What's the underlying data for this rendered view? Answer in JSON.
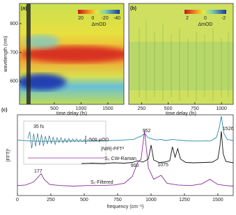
{
  "chart_data": [
    {
      "type": "heatmap",
      "title": "(a)",
      "xlabel": "time delay (fs)",
      "ylabel": "wavelength (nm)",
      "xlim": [
        -150,
        1800
      ],
      "xticks": [
        500,
        1000,
        1500
      ],
      "ylim": [
        520,
        870
      ],
      "yticks": [
        600,
        700,
        800
      ],
      "colorbar_ticks": [
        20,
        0,
        -20,
        -40
      ],
      "colorbar_label": "ΔmOD"
    },
    {
      "type": "heatmap",
      "title": "(b)",
      "xlabel": "time delay (fs)",
      "xlim": [
        130,
        1110
      ],
      "xticks": [
        250,
        500,
        750,
        1000
      ],
      "colorbar_ticks": [
        2,
        0,
        -2
      ],
      "colorbar_label": "ΔmOD"
    },
    {
      "type": "line",
      "title": "(c)",
      "xlabel": "frequency (cm⁻¹)",
      "ylabel": "|FFT|²",
      "xlim": [
        0,
        1615
      ],
      "xticks": [
        0,
        250,
        500,
        750,
        1000,
        1250,
        1500
      ],
      "series": [
        {
          "name": "|NIR|-FFT²",
          "color": "#2a8aa8",
          "x": [
            0,
            100,
            200,
            300,
            400,
            500,
            600,
            700,
            800,
            870,
            900,
            930,
            952,
            975,
            1000,
            1040,
            1075,
            1110,
            1160,
            1200,
            1250,
            1300,
            1380,
            1450,
            1490,
            1510,
            1526,
            1545,
            1570,
            1615
          ],
          "values": [
            0.1,
            0.06,
            0.05,
            0.05,
            0.06,
            0.05,
            0.06,
            0.08,
            0.1,
            0.12,
            0.2,
            0.25,
            0.35,
            0.2,
            0.15,
            0.1,
            0.12,
            0.08,
            0.12,
            0.1,
            0.08,
            0.06,
            0.06,
            0.07,
            0.2,
            0.55,
            1.0,
            0.35,
            0.12,
            0.08
          ]
        },
        {
          "name": "S₀ CW-Raman",
          "color": "#111111",
          "x": [
            480,
            560,
            640,
            720,
            800,
            860,
            900,
            940,
            980,
            1000,
            1020,
            1060,
            1100,
            1140,
            1160,
            1180,
            1200,
            1220,
            1260,
            1320,
            1400,
            1460,
            1500,
            1515,
            1526,
            1540,
            1560,
            1615
          ],
          "values": [
            0.02,
            0.03,
            0.02,
            0.04,
            0.03,
            0.05,
            0.1,
            0.06,
            0.15,
            0.55,
            0.12,
            0.05,
            0.06,
            0.1,
            0.5,
            0.2,
            0.45,
            0.15,
            0.05,
            0.04,
            0.05,
            0.06,
            0.15,
            0.5,
            0.95,
            0.3,
            0.08,
            0.04
          ]
        },
        {
          "name": "S₁-Filtered",
          "color": "#8a2a9a",
          "x": [
            0,
            60,
            120,
            160,
            177,
            200,
            240,
            320,
            420,
            520,
            620,
            720,
            800,
            860,
            900,
            925,
            952,
            980,
            1020,
            1075,
            1120,
            1200,
            1300,
            1380,
            1440,
            1500,
            1560,
            1615
          ],
          "values": [
            0.04,
            0.05,
            0.1,
            0.2,
            0.25,
            0.15,
            0.06,
            0.04,
            0.03,
            0.04,
            0.04,
            0.05,
            0.08,
            0.2,
            0.45,
            0.5,
            1.0,
            0.35,
            0.15,
            0.22,
            0.08,
            0.05,
            0.04,
            0.07,
            0.15,
            0.06,
            0.04,
            0.03
          ]
        }
      ],
      "inset": {
        "color": "#2a6f88",
        "values": [
          0.2,
          0.9,
          -0.8,
          0.7,
          -0.6,
          0.75,
          -0.5,
          0.6,
          -0.55,
          0.45,
          -0.35,
          0.5,
          -0.3,
          0.35,
          -0.4,
          0.3,
          -0.2,
          0.3,
          -0.25,
          0.2,
          -0.2,
          0.22,
          -0.15,
          0.18,
          -0.12,
          0.15,
          -0.12,
          0.12,
          -0.1,
          0.1,
          -0.08,
          0.1,
          -0.06,
          0.08,
          -0.08,
          0.06,
          -0.05,
          0.05,
          -0.05,
          0.04
        ]
      },
      "annotations": [
        "1526",
        "952",
        "900",
        "1075",
        "177",
        "35 fs",
        "500 μOD"
      ]
    }
  ]
}
